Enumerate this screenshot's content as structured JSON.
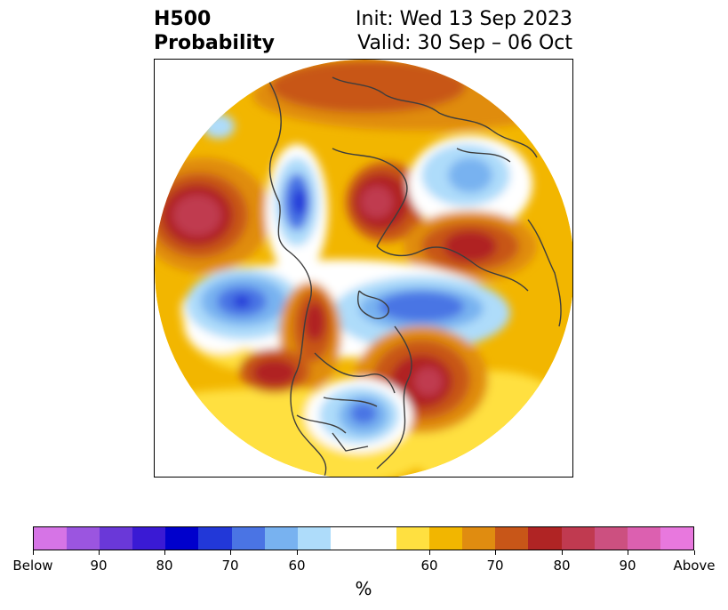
{
  "title": {
    "left_line1": "H500",
    "left_line2": "Probability",
    "right_line1": "Init: Wed 13 Sep 2023",
    "right_line2": "Valid: 30 Sep – 06 Oct"
  },
  "colorbar": {
    "unit": "%",
    "colors": [
      "#d674e6",
      "#9b55e0",
      "#6a38d8",
      "#3a1ad4",
      "#0000cc",
      "#2238d8",
      "#4a74e4",
      "#78b2f0",
      "#aedcfa",
      "#ffffff",
      "#ffe040",
      "#f2b600",
      "#e08c10",
      "#c85618",
      "#b02424",
      "#c03a50",
      "#cc5080",
      "#dc60b0",
      "#e878de"
    ],
    "tick_labels": [
      "Below",
      "90",
      "80",
      "70",
      "60",
      "60",
      "70",
      "80",
      "90",
      "Above"
    ]
  },
  "map": {
    "projection": "north-polar-stereographic",
    "below_colors": [
      "#aedcfa",
      "#78b2f0",
      "#4a74e4",
      "#2238d8"
    ],
    "above_colors": [
      "#ffe040",
      "#f2b600",
      "#e08c10",
      "#c85618",
      "#b02424",
      "#c03a50"
    ],
    "border_color": "#3d3d3d"
  }
}
